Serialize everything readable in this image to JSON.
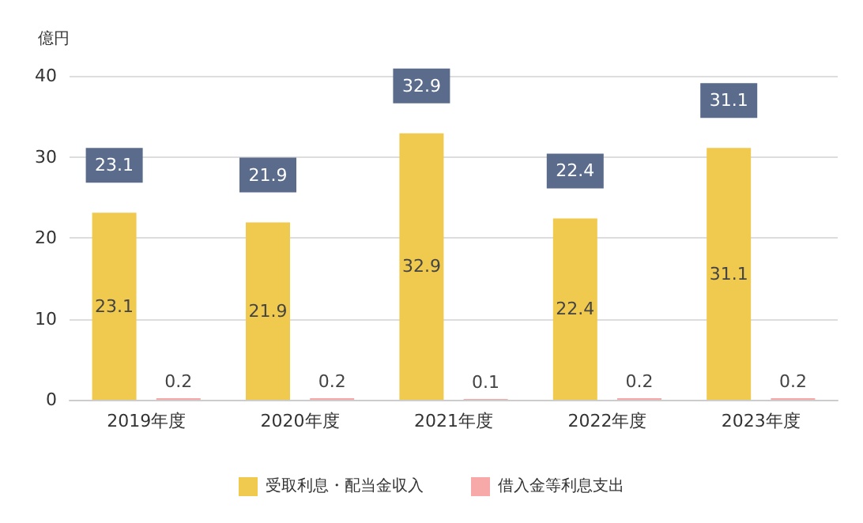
{
  "chart_data": {
    "type": "bar",
    "ylabel": "億円",
    "categories": [
      "2019年度",
      "2020年度",
      "2021年度",
      "2022年度",
      "2023年度"
    ],
    "series": [
      {
        "name": "受取利息・配当金収入",
        "color": "#f0c94f",
        "values": [
          23.1,
          21.9,
          32.9,
          22.4,
          31.1
        ]
      },
      {
        "name": "借入金等利息支出",
        "color": "#f7a8a8",
        "values": [
          0.2,
          0.2,
          0.1,
          0.2,
          0.2
        ]
      }
    ],
    "annotations": [
      "23.1",
      "21.9",
      "32.9",
      "22.4",
      "31.1"
    ],
    "ylim": [
      0,
      40
    ],
    "yticks": [
      0,
      10,
      20,
      30,
      40
    ],
    "grid": "y",
    "legend": "bottom",
    "data_labels": true
  }
}
